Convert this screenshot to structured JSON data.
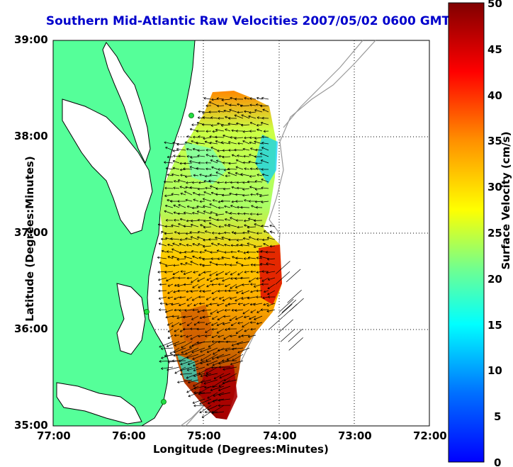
{
  "title": "Southern Mid-Atlantic Raw Velocities 2007/05/02 0600 GMT",
  "x_axis": {
    "label": "Longitude (Degrees:Minutes)",
    "ticks": [
      "77:00",
      "76:00",
      "75:00",
      "74:00",
      "73:00",
      "72:00"
    ]
  },
  "y_axis": {
    "label": "Latitude (Degrees:Minutes)",
    "ticks": [
      "39:00",
      "38:00",
      "37:00",
      "36:00",
      "35:00"
    ]
  },
  "colorbar": {
    "label": "Surface Velocity (cm/s)",
    "ticks": [
      "50",
      "45",
      "40",
      "35",
      "30",
      "25",
      "20",
      "15",
      "10",
      "5",
      "0"
    ],
    "colors": [
      "#0000ff",
      "#0080ff",
      "#00ffff",
      "#80ff80",
      "#ffff00",
      "#ff8000",
      "#ff0000",
      "#800000"
    ]
  },
  "colors": {
    "land": "#55ff99",
    "coast": "#000000",
    "bathymetry": "#999999",
    "site_marker": "#22dd44"
  }
}
